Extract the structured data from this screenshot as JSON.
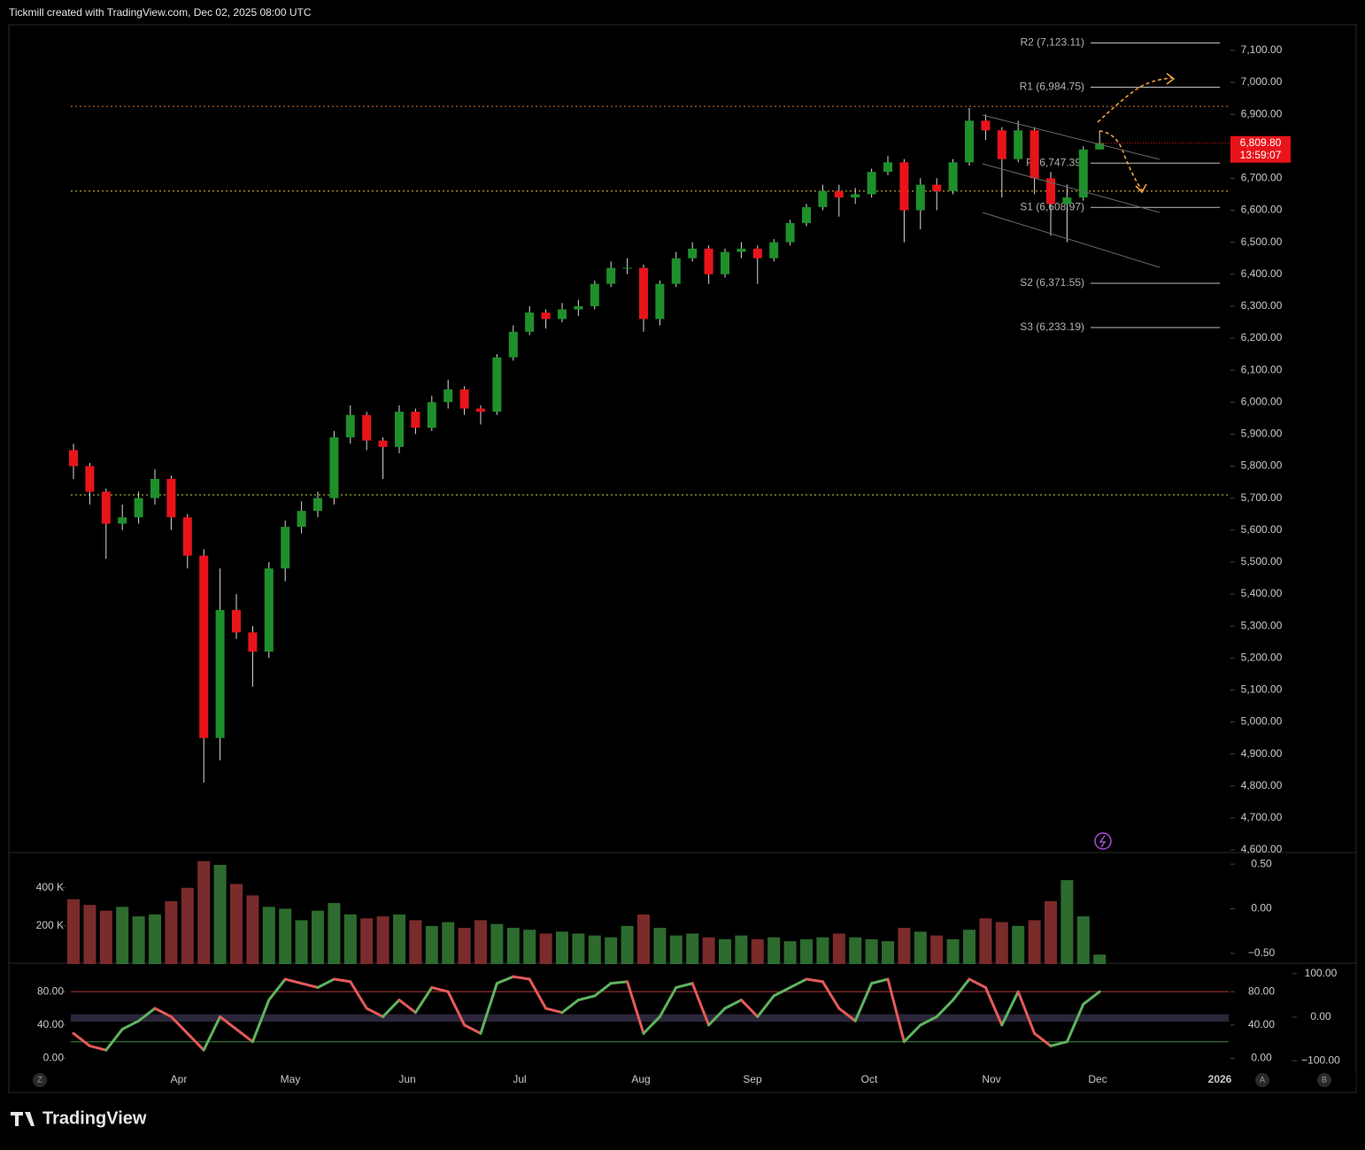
{
  "header": {
    "text": "Tickmill created with TradingView.com, Dec 02, 2025 08:00 UTC"
  },
  "chart_data": [
    {
      "type": "candlestick",
      "open": [
        5850,
        5800,
        5720,
        5620,
        5640,
        5700,
        5760,
        5640,
        5520,
        4950,
        5350,
        5280,
        5220,
        5480,
        5610,
        5660,
        5700,
        5890,
        5960,
        5880,
        5860,
        5970,
        5920,
        6000,
        6040,
        5980,
        5970,
        6140,
        6220,
        6280,
        6260,
        6290,
        6300,
        6370,
        6420,
        6420,
        6260,
        6370,
        6450,
        6480,
        6400,
        6470,
        6480,
        6450,
        6500,
        6560,
        6610,
        6660,
        6640,
        6650,
        6720,
        6750,
        6600,
        6680,
        6660,
        6750,
        6880,
        6850,
        6760,
        6850,
        6700,
        6620,
        6640,
        6790
      ],
      "high": [
        5870,
        5810,
        5730,
        5680,
        5720,
        5790,
        5770,
        5650,
        5540,
        5480,
        5400,
        5300,
        5500,
        5630,
        5690,
        5720,
        5910,
        5990,
        5970,
        5890,
        5990,
        5980,
        6020,
        6070,
        6050,
        5990,
        6150,
        6240,
        6300,
        6290,
        6310,
        6320,
        6380,
        6440,
        6450,
        6430,
        6380,
        6470,
        6500,
        6490,
        6480,
        6500,
        6490,
        6510,
        6570,
        6620,
        6680,
        6680,
        6670,
        6730,
        6770,
        6760,
        6700,
        6700,
        6760,
        6920,
        6900,
        6860,
        6880,
        6860,
        6720,
        6680,
        6800,
        6850
      ],
      "low": [
        5760,
        5680,
        5510,
        5600,
        5620,
        5680,
        5600,
        5480,
        4810,
        4880,
        5260,
        5110,
        5200,
        5440,
        5590,
        5640,
        5680,
        5870,
        5850,
        5760,
        5840,
        5900,
        5910,
        5980,
        5960,
        5930,
        5960,
        6130,
        6210,
        6230,
        6250,
        6270,
        6290,
        6360,
        6400,
        6220,
        6240,
        6360,
        6440,
        6370,
        6390,
        6450,
        6370,
        6440,
        6490,
        6550,
        6600,
        6580,
        6620,
        6640,
        6710,
        6500,
        6540,
        6600,
        6650,
        6740,
        6820,
        6640,
        6750,
        6650,
        6520,
        6500,
        6630,
        6790
      ],
      "close": [
        5800,
        5720,
        5620,
        5640,
        5700,
        5760,
        5640,
        5520,
        4950,
        5350,
        5280,
        5220,
        5480,
        5610,
        5660,
        5700,
        5890,
        5960,
        5880,
        5860,
        5970,
        5920,
        6000,
        6040,
        5980,
        5970,
        6140,
        6220,
        6280,
        6260,
        6290,
        6300,
        6370,
        6420,
        6420,
        6260,
        6370,
        6450,
        6480,
        6400,
        6470,
        6480,
        6450,
        6500,
        6560,
        6610,
        6660,
        6640,
        6650,
        6720,
        6750,
        6600,
        6680,
        6660,
        6750,
        6880,
        6850,
        6760,
        6850,
        6700,
        6620,
        6640,
        6790,
        6810
      ],
      "up_color": "#1f8f2c",
      "down_color": "#e8141a",
      "ylim": [
        4600,
        7180
      ],
      "yticks": [
        {
          "value": 4600,
          "label": "4,600.00"
        },
        {
          "value": 4700,
          "label": "4,700.00"
        },
        {
          "value": 4800,
          "label": "4,800.00"
        },
        {
          "value": 4900,
          "label": "4,900.00"
        },
        {
          "value": 5000,
          "label": "5,000.00"
        },
        {
          "value": 5100,
          "label": "5,100.00"
        },
        {
          "value": 5200,
          "label": "5,200.00"
        },
        {
          "value": 5300,
          "label": "5,300.00"
        },
        {
          "value": 5400,
          "label": "5,400.00"
        },
        {
          "value": 5500,
          "label": "5,500.00"
        },
        {
          "value": 5600,
          "label": "5,600.00"
        },
        {
          "value": 5700,
          "label": "5,700.00"
        },
        {
          "value": 5800,
          "label": "5,800.00"
        },
        {
          "value": 5900,
          "label": "5,900.00"
        },
        {
          "value": 6000,
          "label": "6,000.00"
        },
        {
          "value": 6100,
          "label": "6,100.00"
        },
        {
          "value": 6200,
          "label": "6,200.00"
        },
        {
          "value": 6300,
          "label": "6,300.00"
        },
        {
          "value": 6400,
          "label": "6,400.00"
        },
        {
          "value": 6500,
          "label": "6,500.00"
        },
        {
          "value": 6600,
          "label": "6,600.00"
        },
        {
          "value": 6700,
          "label": "6,700.00"
        },
        {
          "value": 6800,
          "label": "6,800.00"
        },
        {
          "value": 6900,
          "label": "6,900.00"
        },
        {
          "value": 7000,
          "label": "7,000.00"
        },
        {
          "value": 7100,
          "label": "7,100.00"
        }
      ],
      "levels": [
        {
          "label": "R2 (7,123.11)",
          "value": 7123.11
        },
        {
          "label": "R1 (6,984.75)",
          "value": 6984.75
        },
        {
          "label": "P (6,747.39)",
          "value": 6747.39
        },
        {
          "label": "S1 (6,608.97)",
          "value": 6608.97
        },
        {
          "label": "S2 (6,371.55)",
          "value": 6371.55
        },
        {
          "label": "S3 (6,233.19)",
          "value": 6233.19
        }
      ],
      "lines": [
        {
          "value": 6925,
          "color": "#e0762a"
        },
        {
          "value": 6660,
          "color": "#e8c531"
        },
        {
          "value": 5710,
          "color": "#c7d93a"
        }
      ],
      "last_price": {
        "value": 6809.8,
        "label": "6,809.80",
        "countdown": "13:59:07",
        "color": "#e8141a"
      }
    },
    {
      "type": "bar",
      "values": [
        340000,
        310000,
        280000,
        300000,
        250000,
        260000,
        330000,
        400000,
        540000,
        520000,
        420000,
        360000,
        300000,
        290000,
        230000,
        280000,
        320000,
        260000,
        240000,
        250000,
        260000,
        230000,
        200000,
        220000,
        190000,
        230000,
        210000,
        190000,
        180000,
        160000,
        170000,
        160000,
        150000,
        140000,
        200000,
        260000,
        190000,
        150000,
        160000,
        140000,
        130000,
        150000,
        130000,
        140000,
        120000,
        130000,
        140000,
        160000,
        140000,
        130000,
        120000,
        190000,
        170000,
        150000,
        130000,
        180000,
        240000,
        220000,
        200000,
        230000,
        330000,
        440000,
        250000,
        50000
      ],
      "up_color": "#2d6b2f",
      "down_color": "#7a2b2b",
      "ylim": [
        0,
        580000
      ],
      "yticks": [
        {
          "value": 200000,
          "label": "200 K"
        },
        {
          "value": 400000,
          "label": "400 K"
        }
      ],
      "y2lim": [
        -0.62,
        0.62
      ],
      "y2ticks": [
        {
          "value": 0.5,
          "label": "0.50"
        },
        {
          "value": 0,
          "label": "0.00"
        },
        {
          "value": -0.5,
          "label": "−0.50"
        }
      ]
    },
    {
      "type": "line",
      "series": [
        {
          "values": [
            30,
            15,
            10,
            35,
            45,
            60,
            50,
            30,
            10,
            50,
            35,
            20,
            70,
            95,
            90,
            85,
            95,
            92,
            60,
            50,
            70,
            55,
            85,
            80,
            40,
            30,
            90,
            98,
            95,
            60,
            55,
            70,
            75,
            90,
            92,
            30,
            50,
            85,
            90,
            40,
            60,
            70,
            50,
            75,
            85,
            95,
            92,
            60,
            45,
            90,
            95,
            20,
            40,
            50,
            70,
            95,
            85,
            40,
            80,
            30,
            15,
            20,
            65,
            80
          ],
          "up_color": "#5fb35f",
          "down_color": "#e55a5a"
        }
      ],
      "ylim": [
        -10,
        112
      ],
      "yticks": [
        {
          "value": 0,
          "label": "0.00"
        },
        {
          "value": 40,
          "label": "40.00"
        },
        {
          "value": 80,
          "label": "80.00"
        }
      ],
      "yticks_right": [
        {
          "value": 0,
          "label": "0.00"
        },
        {
          "value": 40,
          "label": "40.00"
        },
        {
          "value": 80,
          "label": "80.00"
        }
      ],
      "y2lim": [
        -114,
        120
      ],
      "y2ticks": [
        {
          "value": -100,
          "label": "−100.00"
        },
        {
          "value": 0,
          "label": "0.00"
        },
        {
          "value": 100,
          "label": "100.00"
        }
      ],
      "reference_lines": [
        {
          "value": 80,
          "color": "#b33a3a"
        },
        {
          "value": 20,
          "color": "#3a8a3a"
        }
      ],
      "band": [
        44,
        53
      ]
    }
  ],
  "time_axis": {
    "labels": [
      "Apr",
      "May",
      "Jun",
      "Jul",
      "Aug",
      "Sep",
      "Oct",
      "Nov",
      "Dec",
      "2026"
    ]
  },
  "buttons": [
    "Z",
    "A",
    "B"
  ],
  "logo": "TradingView"
}
